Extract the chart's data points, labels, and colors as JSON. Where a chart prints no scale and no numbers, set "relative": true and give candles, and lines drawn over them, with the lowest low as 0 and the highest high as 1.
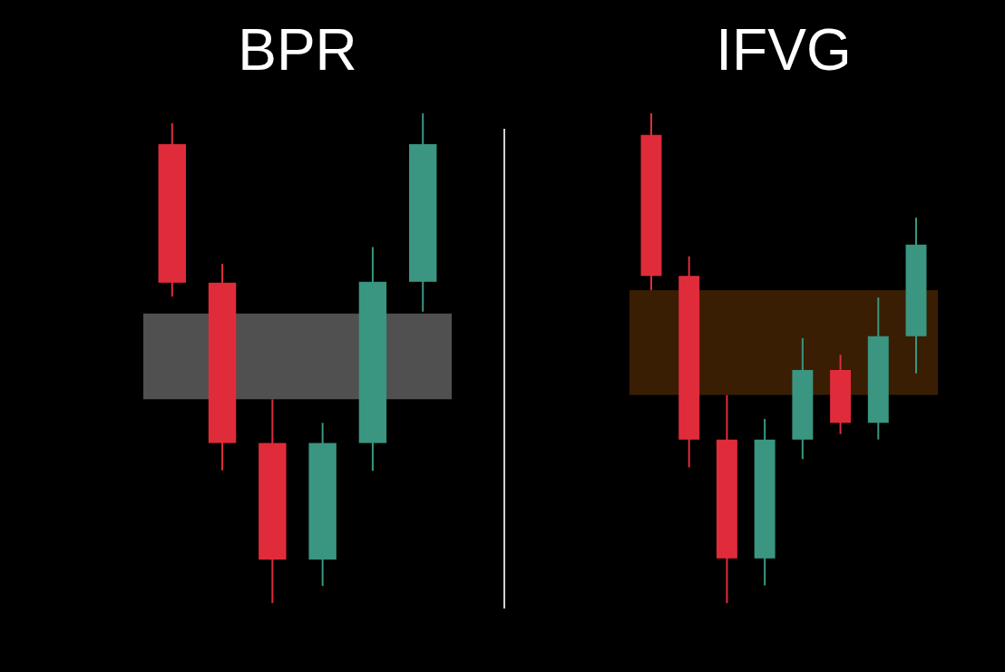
{
  "chart_data": [
    {
      "type": "candlestick",
      "title": "BPR",
      "relative": true,
      "categories": [
        null,
        null,
        null,
        null,
        null,
        null
      ],
      "ohlc": [
        [
          0.937,
          0.98,
          0.626,
          0.654
        ],
        [
          0.654,
          0.693,
          0.271,
          0.327
        ],
        [
          0.327,
          0.416,
          0,
          0.089
        ],
        [
          0.089,
          0.368,
          0.035,
          0.327
        ],
        [
          0.327,
          0.727,
          0.27,
          0.656
        ],
        [
          0.656,
          1,
          0.595,
          0.937
        ]
      ],
      "colors": [
        "#e02c3a",
        "#e02c3a",
        "#e02c3a",
        "#3a9680",
        "#3a9680",
        "#3a9680"
      ],
      "bands": [
        {
          "axis": "y",
          "from": 0.416,
          "to": 0.591,
          "color": "#505050"
        }
      ]
    },
    {
      "type": "candlestick",
      "title": "IFVG",
      "relative": true,
      "categories": [
        null,
        null,
        null,
        null,
        null,
        null,
        null,
        null
      ],
      "ohlc": [
        [
          0.956,
          1,
          0.639,
          0.668
        ],
        [
          0.668,
          0.708,
          0.277,
          0.334
        ],
        [
          0.334,
          0.425,
          0,
          0.091
        ],
        [
          0.091,
          0.376,
          0.036,
          0.334
        ],
        [
          0.334,
          0.541,
          0.294,
          0.476
        ],
        [
          0.476,
          0.507,
          0.345,
          0.368
        ],
        [
          0.368,
          0.624,
          0.334,
          0.545
        ],
        [
          0.545,
          0.787,
          0.469,
          0.732
        ]
      ],
      "colors": [
        "#e02c3a",
        "#e02c3a",
        "#e02c3a",
        "#3a9680",
        "#3a9680",
        "#e02c3a",
        "#3a9680",
        "#3a9680"
      ],
      "bands": [
        {
          "axis": "y",
          "from": 0.425,
          "to": 0.639,
          "color": "#3a1e04"
        }
      ]
    }
  ]
}
